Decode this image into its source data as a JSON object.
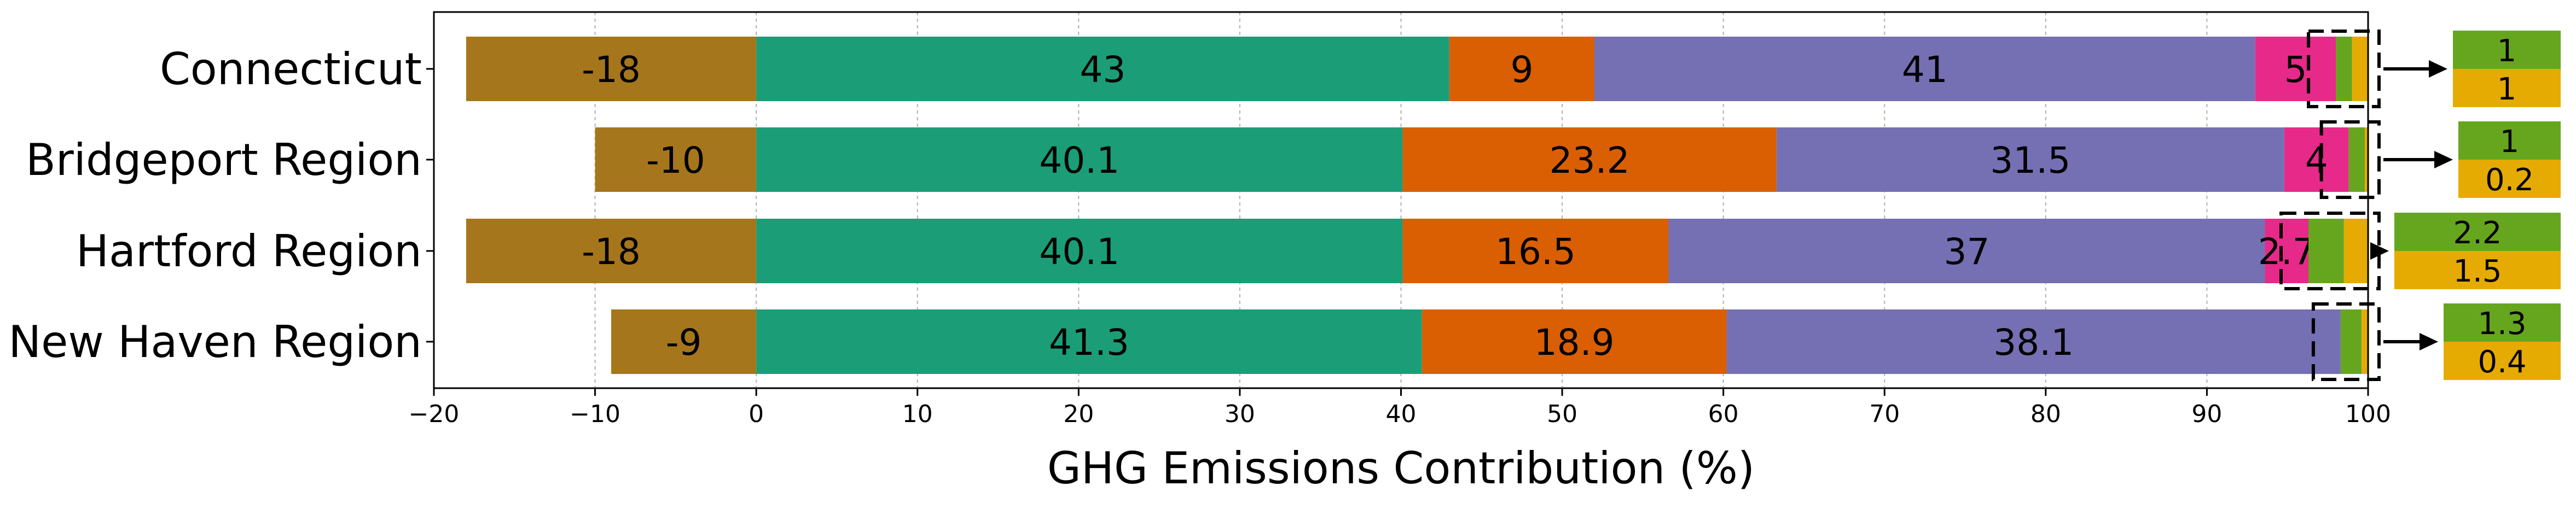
{
  "chart_data": {
    "type": "bar",
    "orientation": "horizontal",
    "stacked": true,
    "xlabel": "GHG Emissions Contribution (%)",
    "xlim": [
      -20,
      100
    ],
    "xticks": [
      -20,
      -10,
      0,
      10,
      20,
      30,
      40,
      50,
      60,
      70,
      80,
      90,
      100
    ],
    "xtick_labels": [
      "−20",
      "−10",
      "0",
      "10",
      "20",
      "30",
      "40",
      "50",
      "60",
      "70",
      "80",
      "90",
      "100"
    ],
    "grid": "x-dashed",
    "categories": [
      "Connecticut",
      "Bridgeport Region",
      "Hartford Region",
      "New Haven Region"
    ],
    "series": [
      {
        "color": "#a6761d",
        "values": [
          -18,
          -10,
          -18,
          -9
        ],
        "labels": [
          "-18",
          "-10",
          "-18",
          "-9"
        ]
      },
      {
        "color": "#1b9e77",
        "values": [
          43,
          40.1,
          40.1,
          41.3
        ],
        "labels": [
          "43",
          "40.1",
          "40.1",
          "41.3"
        ]
      },
      {
        "color": "#d95f02",
        "values": [
          9,
          23.2,
          16.5,
          18.9
        ],
        "labels": [
          "9",
          "23.2",
          "16.5",
          "18.9"
        ]
      },
      {
        "color": "#7570b3",
        "values": [
          41,
          31.5,
          37,
          38.1
        ],
        "labels": [
          "41",
          "31.5",
          "37",
          "38.1"
        ]
      },
      {
        "color": "#e7298a",
        "values": [
          5,
          4,
          2.7,
          0
        ],
        "labels": [
          "5",
          "4",
          "2.7",
          ""
        ]
      },
      {
        "color": "#66a61e",
        "values": [
          1,
          1,
          2.2,
          1.3
        ],
        "labels": [
          "1",
          "1",
          "2.2",
          "1.3"
        ]
      },
      {
        "color": "#e6ab02",
        "values": [
          1,
          0.2,
          1.5,
          0.4
        ],
        "labels": [
          "1",
          "0.2",
          "1.5",
          "0.4"
        ]
      }
    ]
  }
}
